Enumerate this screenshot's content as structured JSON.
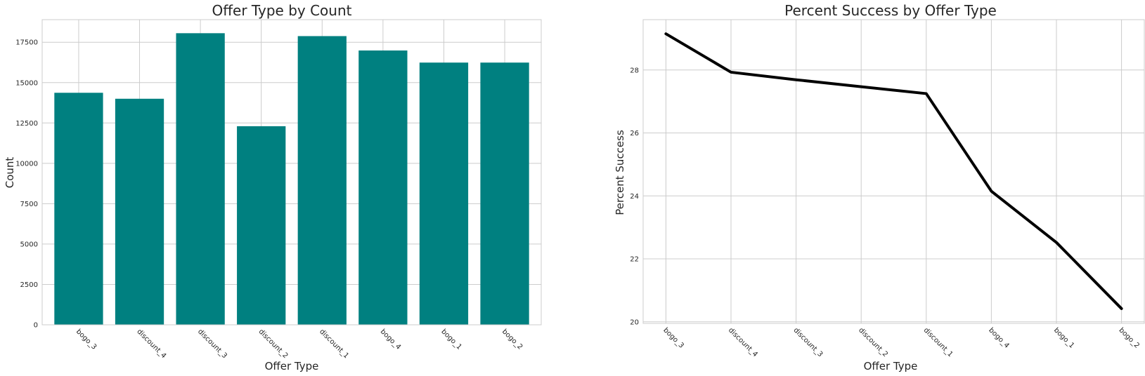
{
  "chart_data": [
    {
      "type": "bar",
      "title": "Offer Type by Count",
      "xlabel": "Offer Type",
      "ylabel": "Count",
      "categories": [
        "bogo_3",
        "discount_4",
        "discount_3",
        "discount_2",
        "discount_1",
        "bogo_4",
        "bogo_1",
        "bogo_2"
      ],
      "values": [
        14370,
        14000,
        18060,
        12300,
        17880,
        16990,
        16240,
        16240
      ],
      "ylim": [
        0,
        18900
      ],
      "yticks": [
        0,
        2500,
        5000,
        7500,
        10000,
        12500,
        15000,
        17500
      ],
      "bar_color": "#008080",
      "grid": true
    },
    {
      "type": "line",
      "title": "Percent Success by Offer Type",
      "xlabel": "Offer Type",
      "ylabel": "Percent Success",
      "categories": [
        "bogo_3",
        "discount_4",
        "discount_3",
        "discount_2",
        "discount_1",
        "bogo_4",
        "bogo_1",
        "bogo_2"
      ],
      "values": [
        29.15,
        27.93,
        27.69,
        27.47,
        27.25,
        24.15,
        22.52,
        20.42
      ],
      "ylim": [
        19.95,
        29.6
      ],
      "yticks": [
        20,
        22,
        24,
        26,
        28
      ],
      "line_color": "#000000",
      "grid": true
    }
  ]
}
